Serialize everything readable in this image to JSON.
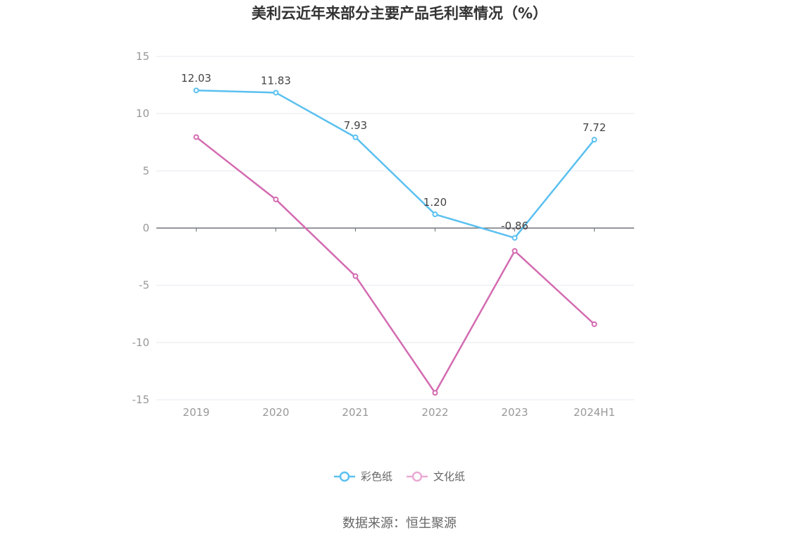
{
  "chart_data": {
    "type": "line",
    "title": "美利云近年来部分主要产品毛利率情况（%）",
    "categories": [
      "2019",
      "2020",
      "2021",
      "2022",
      "2023",
      "2024H1"
    ],
    "ylim": [
      -15,
      15
    ],
    "yticks": [
      15,
      10,
      5,
      0,
      -5,
      -10,
      -15
    ],
    "grid": true,
    "legend_position": "bottom",
    "series": [
      {
        "name": "彩色纸",
        "color": "#5BC0F0",
        "values": [
          12.03,
          11.83,
          7.93,
          1.2,
          -0.86,
          7.72
        ],
        "labels": [
          "12.03",
          "11.83",
          "7.93",
          "1.20",
          "-0.86",
          "7.72"
        ]
      },
      {
        "name": "文化纸",
        "color": "#D36BB1",
        "values": [
          7.95,
          2.5,
          -4.2,
          -14.4,
          -2.0,
          -8.4
        ]
      }
    ],
    "source": "数据来源：恒生聚源"
  }
}
